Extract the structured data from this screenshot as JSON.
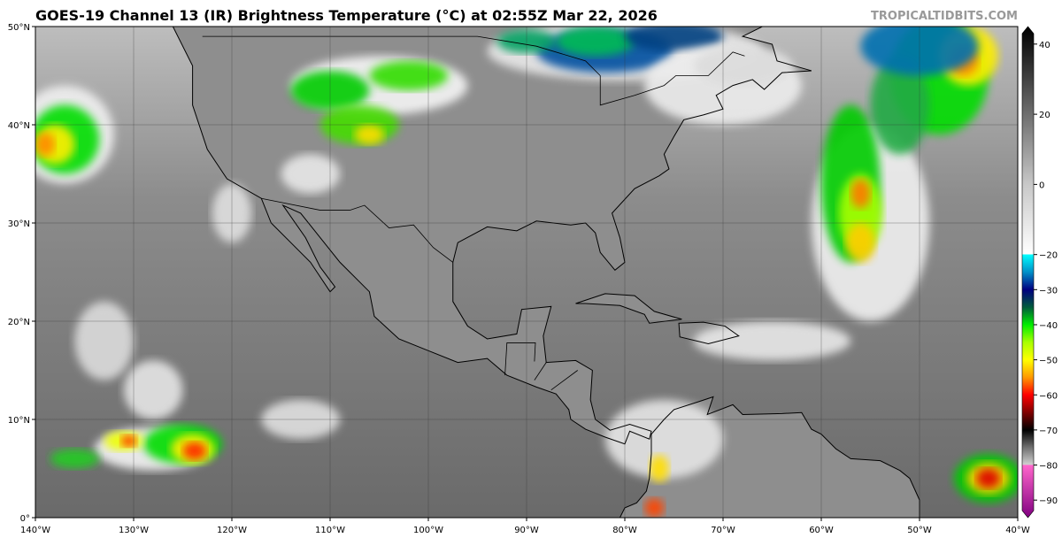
{
  "header": {
    "title": "GOES-19 Channel 13 (IR) Brightness Temperature (°C) at 02:55Z Mar 22, 2026",
    "credit": "TROPICALTIDBITS.COM"
  },
  "map": {
    "lon_range": [
      -140,
      -40
    ],
    "lat_range": [
      0,
      50
    ],
    "lon_labels": [
      "140°W",
      "130°W",
      "120°W",
      "110°W",
      "100°W",
      "90°W",
      "80°W",
      "70°W",
      "60°W",
      "50°W",
      "40°W"
    ],
    "lat_labels": [
      "0°",
      "10°N",
      "20°N",
      "30°N",
      "40°N",
      "50°N"
    ],
    "grid": true
  },
  "colorbar": {
    "units": "°C",
    "range": [
      -90,
      40
    ],
    "tick_labels": [
      "40",
      "20",
      "0",
      "−20",
      "−30",
      "−40",
      "−50",
      "−60",
      "−70",
      "−80",
      "−90"
    ],
    "tick_values": [
      40,
      20,
      0,
      -20,
      -30,
      -40,
      -50,
      -60,
      -70,
      -80,
      -90
    ],
    "stops": [
      [
        45,
        "#000000"
      ],
      [
        40,
        "#151515"
      ],
      [
        20,
        "#6e6e6e"
      ],
      [
        0,
        "#c8c8c8"
      ],
      [
        -19.9,
        "#ffffff"
      ],
      [
        -20,
        "#00ffff"
      ],
      [
        -25,
        "#0090c8"
      ],
      [
        -30,
        "#000080"
      ],
      [
        -35,
        "#005a3c"
      ],
      [
        -40,
        "#00ee00"
      ],
      [
        -45,
        "#a8ff00"
      ],
      [
        -50,
        "#ffff00"
      ],
      [
        -55,
        "#ff9900"
      ],
      [
        -60,
        "#ff0000"
      ],
      [
        -65,
        "#800000"
      ],
      [
        -70,
        "#000000"
      ],
      [
        -75,
        "#707070"
      ],
      [
        -79.9,
        "#d0d0d0"
      ],
      [
        -80,
        "#ff66cc"
      ],
      [
        -95,
        "#800080"
      ]
    ]
  }
}
